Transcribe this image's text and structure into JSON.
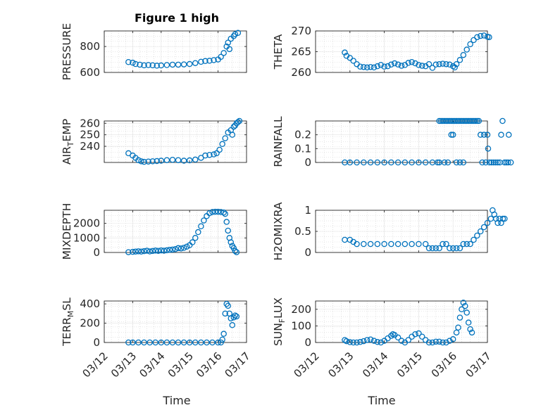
{
  "figure": {
    "title": "Figure 1 high",
    "xlabel": "Time"
  },
  "colors": {
    "marker": "#0072BD",
    "axes": "#262626",
    "grid": "#d0d0d0",
    "background": "#ffffff"
  },
  "x_ticks": [
    "03/12",
    "03/13",
    "03/14",
    "03/15",
    "03/16",
    "03/17"
  ],
  "chart_data": [
    {
      "type": "scatter",
      "ylabel": "PRESSURE",
      "ylim": [
        600,
        920
      ],
      "yticks": [
        600,
        800
      ],
      "ytick_labels": [
        "600",
        "800"
      ],
      "grid": true,
      "points": [
        [
          12.85,
          680
        ],
        [
          13.0,
          675
        ],
        [
          13.1,
          665
        ],
        [
          13.25,
          660
        ],
        [
          13.4,
          655
        ],
        [
          13.55,
          657
        ],
        [
          13.7,
          655
        ],
        [
          13.85,
          652
        ],
        [
          14.0,
          654
        ],
        [
          14.2,
          657
        ],
        [
          14.4,
          660
        ],
        [
          14.6,
          660
        ],
        [
          14.8,
          662
        ],
        [
          15.0,
          665
        ],
        [
          15.2,
          672
        ],
        [
          15.4,
          682
        ],
        [
          15.55,
          688
        ],
        [
          15.7,
          690
        ],
        [
          15.85,
          695
        ],
        [
          16.0,
          700
        ],
        [
          16.1,
          720
        ],
        [
          16.2,
          750
        ],
        [
          16.3,
          800
        ],
        [
          16.35,
          830
        ],
        [
          16.4,
          780
        ],
        [
          16.45,
          860
        ],
        [
          16.55,
          880
        ],
        [
          16.6,
          895
        ],
        [
          16.7,
          905
        ]
      ]
    },
    {
      "type": "scatter",
      "ylabel": "THETA",
      "ylim": [
        260,
        270
      ],
      "yticks": [
        260,
        265,
        270
      ],
      "ytick_labels": [
        "260",
        "265",
        "270"
      ],
      "grid": true,
      "points": [
        [
          12.85,
          264.8
        ],
        [
          12.9,
          264.0
        ],
        [
          13.0,
          263.5
        ],
        [
          13.1,
          262.8
        ],
        [
          13.2,
          262.0
        ],
        [
          13.3,
          261.4
        ],
        [
          13.4,
          261.3
        ],
        [
          13.5,
          261.2
        ],
        [
          13.6,
          261.3
        ],
        [
          13.7,
          261.2
        ],
        [
          13.8,
          261.5
        ],
        [
          13.9,
          261.8
        ],
        [
          14.0,
          261.4
        ],
        [
          14.1,
          261.5
        ],
        [
          14.2,
          261.9
        ],
        [
          14.3,
          262.2
        ],
        [
          14.4,
          261.9
        ],
        [
          14.5,
          261.6
        ],
        [
          14.6,
          261.8
        ],
        [
          14.7,
          262.3
        ],
        [
          14.8,
          262.5
        ],
        [
          14.9,
          262.2
        ],
        [
          15.0,
          261.8
        ],
        [
          15.1,
          261.6
        ],
        [
          15.2,
          261.5
        ],
        [
          15.3,
          262.0
        ],
        [
          15.4,
          261.1
        ],
        [
          15.5,
          261.9
        ],
        [
          15.6,
          262.0
        ],
        [
          15.7,
          262.1
        ],
        [
          15.8,
          262.0
        ],
        [
          15.9,
          261.9
        ],
        [
          16.0,
          261.5
        ],
        [
          16.05,
          261.2
        ],
        [
          16.1,
          262.0
        ],
        [
          16.2,
          263.0
        ],
        [
          16.3,
          264.2
        ],
        [
          16.4,
          265.5
        ],
        [
          16.5,
          266.8
        ],
        [
          16.6,
          267.8
        ],
        [
          16.7,
          268.5
        ],
        [
          16.8,
          268.8
        ],
        [
          16.9,
          268.9
        ],
        [
          17.0,
          268.6
        ],
        [
          17.05,
          268.5
        ]
      ]
    },
    {
      "type": "scatter",
      "ylabel": "AIR_TEMP",
      "ylabel_main": "AIR",
      "ylabel_sub": "T",
      "ylabel_rest": "EMP",
      "ylim": [
        226,
        262
      ],
      "yticks": [
        240,
        250,
        260
      ],
      "ytick_labels": [
        "240",
        "250",
        "260"
      ],
      "grid": true,
      "points": [
        [
          12.85,
          234
        ],
        [
          13.0,
          232
        ],
        [
          13.1,
          230
        ],
        [
          13.2,
          228
        ],
        [
          13.3,
          227
        ],
        [
          13.4,
          226.5
        ],
        [
          13.55,
          226.8
        ],
        [
          13.7,
          227
        ],
        [
          13.85,
          227.2
        ],
        [
          14.0,
          227.5
        ],
        [
          14.2,
          228
        ],
        [
          14.4,
          228.3
        ],
        [
          14.6,
          228
        ],
        [
          14.8,
          227.5
        ],
        [
          15.0,
          227.8
        ],
        [
          15.2,
          228.5
        ],
        [
          15.4,
          230
        ],
        [
          15.55,
          232
        ],
        [
          15.7,
          232.5
        ],
        [
          15.85,
          233
        ],
        [
          15.95,
          234
        ],
        [
          16.05,
          237
        ],
        [
          16.15,
          242
        ],
        [
          16.25,
          247
        ],
        [
          16.35,
          252
        ],
        [
          16.45,
          254
        ],
        [
          16.5,
          250
        ],
        [
          16.55,
          257
        ],
        [
          16.6,
          258
        ],
        [
          16.65,
          260
        ],
        [
          16.7,
          261
        ],
        [
          16.75,
          262
        ]
      ]
    },
    {
      "type": "scatter",
      "ylabel": "RAINFALL",
      "ylim": [
        0,
        0.3
      ],
      "yticks": [
        0,
        0.1,
        0.2
      ],
      "ytick_labels": [
        "0",
        "0.1",
        "0.2"
      ],
      "grid": true,
      "points": [
        [
          12.85,
          0
        ],
        [
          13.0,
          0
        ],
        [
          13.2,
          0
        ],
        [
          13.4,
          0
        ],
        [
          13.6,
          0
        ],
        [
          13.8,
          0
        ],
        [
          14.0,
          0
        ],
        [
          14.2,
          0
        ],
        [
          14.4,
          0
        ],
        [
          14.6,
          0
        ],
        [
          14.8,
          0
        ],
        [
          15.0,
          0
        ],
        [
          15.2,
          0
        ],
        [
          15.4,
          0
        ],
        [
          15.55,
          0
        ],
        [
          15.6,
          0.3
        ],
        [
          15.65,
          0.3
        ],
        [
          15.7,
          0.3
        ],
        [
          15.75,
          0.3
        ],
        [
          15.8,
          0.3
        ],
        [
          15.85,
          0.3
        ],
        [
          15.9,
          0.3
        ],
        [
          15.95,
          0.3
        ],
        [
          16.0,
          0.3
        ],
        [
          16.05,
          0.3
        ],
        [
          16.1,
          0.3
        ],
        [
          16.15,
          0.3
        ],
        [
          16.2,
          0.3
        ],
        [
          16.25,
          0.3
        ],
        [
          16.3,
          0.3
        ],
        [
          16.35,
          0.3
        ],
        [
          16.4,
          0.3
        ],
        [
          15.6,
          0
        ],
        [
          15.75,
          0
        ],
        [
          15.85,
          0
        ],
        [
          15.95,
          0.2
        ],
        [
          16.0,
          0.2
        ],
        [
          16.1,
          0
        ],
        [
          16.2,
          0
        ],
        [
          16.3,
          0
        ],
        [
          16.45,
          0.3
        ],
        [
          16.5,
          0.3
        ],
        [
          16.55,
          0.3
        ],
        [
          16.6,
          0.3
        ],
        [
          16.65,
          0.3
        ],
        [
          16.7,
          0.3
        ],
        [
          16.75,
          0.3
        ],
        [
          16.8,
          0.2
        ],
        [
          16.9,
          0.2
        ],
        [
          17.0,
          0.2
        ],
        [
          16.85,
          0
        ],
        [
          16.95,
          0
        ],
        [
          17.02,
          0.1
        ],
        [
          17.06,
          0
        ],
        [
          17.12,
          0
        ],
        [
          17.18,
          0
        ],
        [
          17.24,
          0
        ],
        [
          17.3,
          0
        ],
        [
          17.36,
          0
        ],
        [
          17.4,
          0.2
        ],
        [
          17.44,
          0.3
        ],
        [
          17.5,
          0
        ],
        [
          17.55,
          0
        ],
        [
          17.6,
          0
        ],
        [
          17.62,
          0.2
        ],
        [
          17.68,
          0
        ]
      ]
    },
    {
      "type": "scatter",
      "ylabel": "MIXDEPTH",
      "ylim": [
        0,
        2900
      ],
      "yticks": [
        0,
        1000,
        2000
      ],
      "ytick_labels": [
        "0",
        "1000",
        "2000"
      ],
      "grid": true,
      "points": [
        [
          12.85,
          20
        ],
        [
          13.0,
          40
        ],
        [
          13.1,
          60
        ],
        [
          13.2,
          80
        ],
        [
          13.3,
          60
        ],
        [
          13.4,
          90
        ],
        [
          13.5,
          120
        ],
        [
          13.6,
          70
        ],
        [
          13.7,
          100
        ],
        [
          13.8,
          130
        ],
        [
          13.9,
          110
        ],
        [
          14.0,
          140
        ],
        [
          14.1,
          120
        ],
        [
          14.2,
          150
        ],
        [
          14.3,
          180
        ],
        [
          14.4,
          200
        ],
        [
          14.5,
          230
        ],
        [
          14.6,
          300
        ],
        [
          14.7,
          280
        ],
        [
          14.8,
          320
        ],
        [
          14.9,
          400
        ],
        [
          15.0,
          500
        ],
        [
          15.1,
          700
        ],
        [
          15.2,
          1000
        ],
        [
          15.3,
          1400
        ],
        [
          15.4,
          1800
        ],
        [
          15.5,
          2200
        ],
        [
          15.6,
          2500
        ],
        [
          15.7,
          2700
        ],
        [
          15.8,
          2780
        ],
        [
          15.9,
          2800
        ],
        [
          16.0,
          2800
        ],
        [
          16.1,
          2780
        ],
        [
          16.2,
          2750
        ],
        [
          16.25,
          2650
        ],
        [
          16.3,
          2100
        ],
        [
          16.35,
          1500
        ],
        [
          16.4,
          1000
        ],
        [
          16.45,
          700
        ],
        [
          16.5,
          450
        ],
        [
          16.55,
          300
        ],
        [
          16.6,
          100
        ],
        [
          16.65,
          20
        ]
      ]
    },
    {
      "type": "scatter",
      "ylabel": "H2OMIXRA",
      "ylim": [
        0,
        1
      ],
      "yticks": [
        0,
        0.5,
        1
      ],
      "ytick_labels": [
        "0",
        "0.5",
        "1"
      ],
      "grid": true,
      "points": [
        [
          12.85,
          0.3
        ],
        [
          13.0,
          0.3
        ],
        [
          13.1,
          0.25
        ],
        [
          13.2,
          0.2
        ],
        [
          13.4,
          0.2
        ],
        [
          13.6,
          0.2
        ],
        [
          13.8,
          0.2
        ],
        [
          14.0,
          0.2
        ],
        [
          14.2,
          0.2
        ],
        [
          14.4,
          0.2
        ],
        [
          14.6,
          0.2
        ],
        [
          14.8,
          0.2
        ],
        [
          15.0,
          0.2
        ],
        [
          15.2,
          0.2
        ],
        [
          15.3,
          0.1
        ],
        [
          15.4,
          0.1
        ],
        [
          15.5,
          0.1
        ],
        [
          15.6,
          0.1
        ],
        [
          15.7,
          0.2
        ],
        [
          15.8,
          0.2
        ],
        [
          15.9,
          0.1
        ],
        [
          16.0,
          0.1
        ],
        [
          16.1,
          0.1
        ],
        [
          16.2,
          0.1
        ],
        [
          16.3,
          0.2
        ],
        [
          16.4,
          0.2
        ],
        [
          16.5,
          0.2
        ],
        [
          16.6,
          0.3
        ],
        [
          16.7,
          0.4
        ],
        [
          16.8,
          0.5
        ],
        [
          16.9,
          0.6
        ],
        [
          17.0,
          0.7
        ],
        [
          17.1,
          0.8
        ],
        [
          17.15,
          1.0
        ],
        [
          17.2,
          0.9
        ],
        [
          17.25,
          0.8
        ],
        [
          17.3,
          0.7
        ],
        [
          17.35,
          0.8
        ],
        [
          17.4,
          0.7
        ],
        [
          17.45,
          0.8
        ],
        [
          17.5,
          0.8
        ]
      ]
    },
    {
      "type": "scatter",
      "ylabel": "TERR_MSL",
      "ylabel_main": "TERR",
      "ylabel_sub": "M",
      "ylabel_rest": "SL",
      "ylim": [
        0,
        430
      ],
      "yticks": [
        0,
        200,
        400
      ],
      "ytick_labels": [
        "0",
        "200",
        "400"
      ],
      "grid": true,
      "points": [
        [
          12.85,
          0
        ],
        [
          13.0,
          0
        ],
        [
          13.2,
          0
        ],
        [
          13.4,
          0
        ],
        [
          13.6,
          0
        ],
        [
          13.8,
          0
        ],
        [
          14.0,
          0
        ],
        [
          14.2,
          0
        ],
        [
          14.4,
          0
        ],
        [
          14.6,
          0
        ],
        [
          14.8,
          0
        ],
        [
          15.0,
          0
        ],
        [
          15.2,
          0
        ],
        [
          15.4,
          0
        ],
        [
          15.6,
          0
        ],
        [
          15.8,
          0
        ],
        [
          16.0,
          0
        ],
        [
          16.1,
          0
        ],
        [
          16.15,
          30
        ],
        [
          16.2,
          90
        ],
        [
          16.25,
          300
        ],
        [
          16.3,
          400
        ],
        [
          16.35,
          380
        ],
        [
          16.4,
          300
        ],
        [
          16.45,
          250
        ],
        [
          16.5,
          180
        ],
        [
          16.55,
          260
        ],
        [
          16.6,
          280
        ],
        [
          16.65,
          270
        ]
      ]
    },
    {
      "type": "scatter",
      "ylabel": "SUN_FLUX",
      "ylabel_main": "SUN",
      "ylabel_sub": "F",
      "ylabel_rest": "LUX",
      "ylim": [
        0,
        250
      ],
      "yticks": [
        0,
        100,
        200
      ],
      "ytick_labels": [
        "0",
        "100",
        "200"
      ],
      "grid": true,
      "points": [
        [
          12.85,
          15
        ],
        [
          12.9,
          8
        ],
        [
          13.0,
          2
        ],
        [
          13.1,
          0
        ],
        [
          13.2,
          0
        ],
        [
          13.3,
          3
        ],
        [
          13.4,
          8
        ],
        [
          13.5,
          15
        ],
        [
          13.6,
          18
        ],
        [
          13.7,
          10
        ],
        [
          13.8,
          3
        ],
        [
          13.9,
          0
        ],
        [
          14.0,
          10
        ],
        [
          14.1,
          25
        ],
        [
          14.2,
          40
        ],
        [
          14.25,
          50
        ],
        [
          14.3,
          45
        ],
        [
          14.4,
          30
        ],
        [
          14.5,
          10
        ],
        [
          14.6,
          0
        ],
        [
          14.7,
          15
        ],
        [
          14.8,
          35
        ],
        [
          14.9,
          50
        ],
        [
          15.0,
          55
        ],
        [
          15.1,
          35
        ],
        [
          15.2,
          15
        ],
        [
          15.3,
          0
        ],
        [
          15.4,
          0
        ],
        [
          15.5,
          5
        ],
        [
          15.6,
          5
        ],
        [
          15.7,
          0
        ],
        [
          15.8,
          0
        ],
        [
          15.9,
          10
        ],
        [
          16.0,
          20
        ],
        [
          16.1,
          60
        ],
        [
          16.15,
          90
        ],
        [
          16.2,
          150
        ],
        [
          16.25,
          200
        ],
        [
          16.3,
          240
        ],
        [
          16.35,
          220
        ],
        [
          16.4,
          180
        ],
        [
          16.45,
          120
        ],
        [
          16.5,
          80
        ],
        [
          16.55,
          60
        ]
      ]
    }
  ]
}
